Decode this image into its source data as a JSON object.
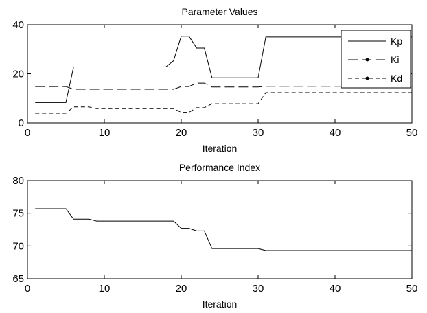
{
  "chart_data": [
    {
      "type": "line",
      "title": "Parameter Values",
      "xlabel": "Iteration",
      "ylabel": "",
      "xlim": [
        0,
        50
      ],
      "ylim": [
        0,
        40
      ],
      "xticks": [
        0,
        10,
        20,
        30,
        40,
        50
      ],
      "yticks": [
        0,
        20,
        40
      ],
      "grid": false,
      "legend": "top-right",
      "series": [
        {
          "name": "Kp",
          "style": "solid",
          "color": "#000000",
          "points": [
            [
              1,
              8.3
            ],
            [
              5,
              8.3
            ],
            [
              6,
              22.8
            ],
            [
              18,
              22.8
            ],
            [
              19,
              25.3
            ],
            [
              20,
              35.3
            ],
            [
              21,
              35.3
            ],
            [
              22,
              30.5
            ],
            [
              23,
              30.5
            ],
            [
              24,
              18.4
            ],
            [
              30,
              18.4
            ],
            [
              31,
              35.0
            ],
            [
              50,
              35.0
            ]
          ]
        },
        {
          "name": "Ki",
          "style": "long-dash",
          "color": "#000000",
          "points": [
            [
              1,
              14.8
            ],
            [
              5,
              14.8
            ],
            [
              6,
              13.7
            ],
            [
              19,
              13.7
            ],
            [
              20,
              14.8
            ],
            [
              21,
              14.8
            ],
            [
              22,
              16.2
            ],
            [
              23,
              16.2
            ],
            [
              24,
              14.6
            ],
            [
              30,
              14.6
            ],
            [
              31,
              14.9
            ],
            [
              50,
              14.9
            ]
          ]
        },
        {
          "name": "Kd",
          "style": "short-dash",
          "color": "#000000",
          "points": [
            [
              1,
              3.9
            ],
            [
              5,
              3.9
            ],
            [
              6,
              6.5
            ],
            [
              8,
              6.5
            ],
            [
              9,
              5.8
            ],
            [
              19,
              5.8
            ],
            [
              20,
              4.3
            ],
            [
              21,
              4.3
            ],
            [
              22,
              6.2
            ],
            [
              23,
              6.2
            ],
            [
              24,
              7.8
            ],
            [
              30,
              7.8
            ],
            [
              31,
              12.3
            ],
            [
              50,
              12.3
            ]
          ]
        }
      ]
    },
    {
      "type": "line",
      "title": "Performance Index",
      "xlabel": "Iteration",
      "ylabel": "",
      "xlim": [
        0,
        50
      ],
      "ylim": [
        65,
        80
      ],
      "xticks": [
        0,
        10,
        20,
        30,
        40,
        50
      ],
      "yticks": [
        65,
        70,
        75,
        80
      ],
      "grid": false,
      "series": [
        {
          "style": "solid",
          "color": "#000000",
          "points": [
            [
              1,
              75.7
            ],
            [
              5,
              75.7
            ],
            [
              6,
              74.1
            ],
            [
              8,
              74.1
            ],
            [
              9,
              73.8
            ],
            [
              19,
              73.8
            ],
            [
              20,
              72.7
            ],
            [
              21,
              72.7
            ],
            [
              22,
              72.3
            ],
            [
              23,
              72.3
            ],
            [
              24,
              69.6
            ],
            [
              30,
              69.6
            ],
            [
              31,
              69.3
            ],
            [
              50,
              69.3
            ]
          ]
        }
      ]
    }
  ]
}
